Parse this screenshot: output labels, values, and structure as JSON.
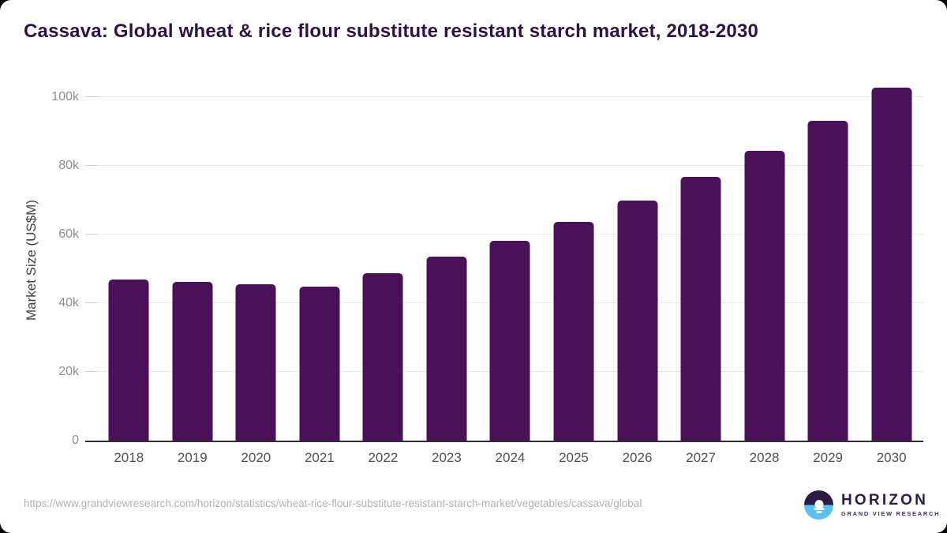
{
  "page": {
    "title": "Cassava: Global wheat & rice flour substitute resistant starch market, 2018-2030"
  },
  "chart_data": {
    "type": "bar",
    "title": "Cassava: Global wheat & rice flour substitute resistant starch market, 2018-2030",
    "categories": [
      "2018",
      "2019",
      "2020",
      "2021",
      "2022",
      "2023",
      "2024",
      "2025",
      "2026",
      "2027",
      "2028",
      "2029",
      "2030"
    ],
    "values": [
      46800,
      46100,
      45400,
      44900,
      48800,
      53500,
      58200,
      63700,
      69900,
      76700,
      84400,
      93000,
      102800
    ],
    "xlabel": "",
    "ylabel": "Market Size (US$M)",
    "ylim": [
      0,
      105000
    ],
    "yticks": [
      {
        "value": 0,
        "label": "0"
      },
      {
        "value": 20000,
        "label": "20k"
      },
      {
        "value": 40000,
        "label": "40k"
      },
      {
        "value": 60000,
        "label": "60k"
      },
      {
        "value": 80000,
        "label": "80k"
      },
      {
        "value": 100000,
        "label": "100k"
      }
    ],
    "grid": "horizontal",
    "legend": false,
    "bar_color": "#4a1158"
  },
  "footer": {
    "source_url": "https://www.grandviewresearch.com/horizon/statistics/wheat-rice-flour-substitute-resistant-starch-market/vegetables/cassava/global",
    "logo": {
      "name": "HORIZON",
      "subtext": "GRAND VIEW RESEARCH"
    }
  },
  "colors": {
    "bar": "#4a1158",
    "title_text": "#2d1245",
    "axis_line": "#2f2f33",
    "gridline": "#e9e9ec",
    "y_tick_label": "#8e8e93",
    "x_tick_label": "#4f4f54",
    "url_text": "#b2b2b6",
    "logo_dark": "#2e1a47",
    "logo_blue": "#5ac0ee"
  }
}
